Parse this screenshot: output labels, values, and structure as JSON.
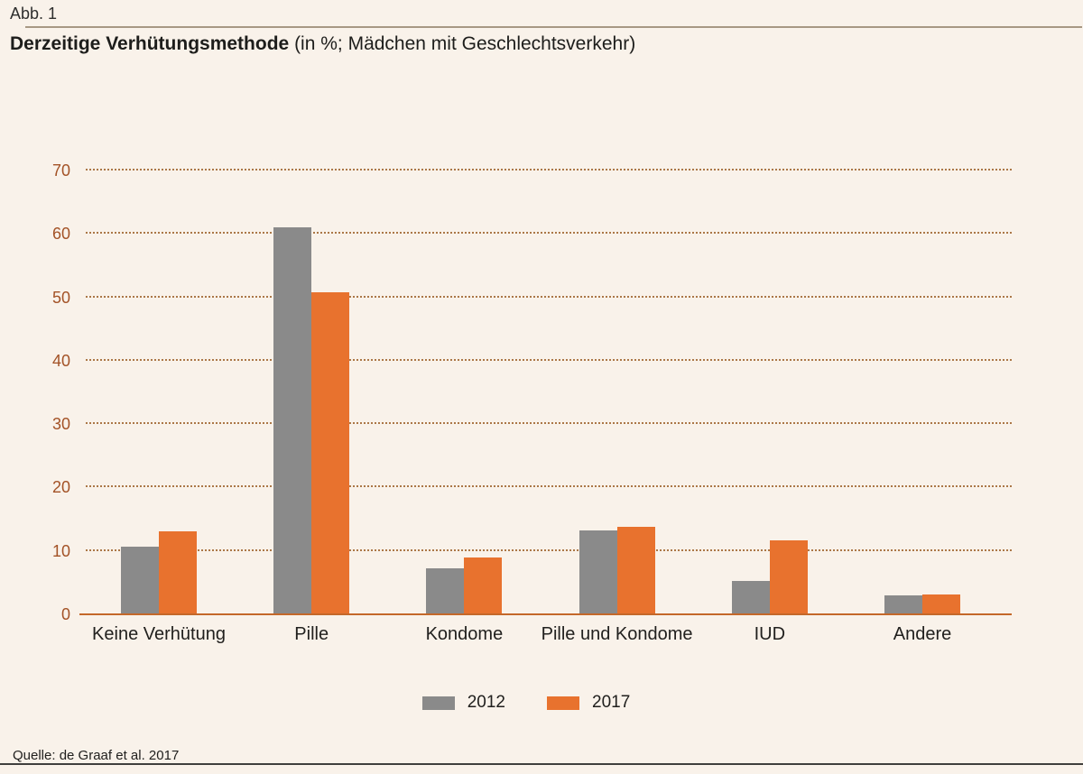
{
  "figure_label": "Abb. 1",
  "title": {
    "main": "Derzeitige Verhütungsmethode",
    "subtitle": "(in %; Mädchen mit Geschlechtsverkehr)"
  },
  "source": "Quelle: de Graaf et al. 2017",
  "chart_data": {
    "type": "bar",
    "title": "Derzeitige Verhütungsmethode (in %; Mädchen mit Geschlechtsverkehr)",
    "categories": [
      "Keine Verhütung",
      "Pille",
      "Kondome",
      "Pille und Kondome",
      "IUD",
      "Andere"
    ],
    "series": [
      {
        "name": "2012",
        "color": "#8a8a8a",
        "values": [
          10.7,
          61.0,
          7.2,
          13.3,
          5.3,
          3.0
        ]
      },
      {
        "name": "2017",
        "color": "#e8722e",
        "values": [
          13.1,
          50.8,
          8.9,
          13.8,
          11.6,
          3.2
        ]
      }
    ],
    "xlabel": "",
    "ylabel": "",
    "ylim": [
      0,
      70
    ],
    "yticks": [
      0,
      10,
      20,
      30,
      40,
      50,
      60,
      70
    ],
    "grid": "horizontal-dotted",
    "legend_position": "bottom-center",
    "colors": {
      "background": "#f9f2ea",
      "axis_line": "#c4682a",
      "tick_label": "#a35226",
      "gridline": "#ab7747"
    }
  }
}
